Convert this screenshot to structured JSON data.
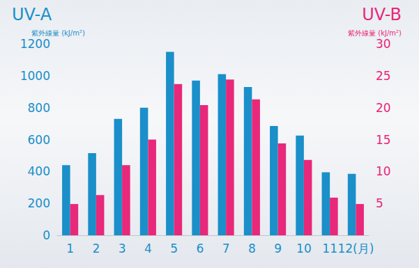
{
  "chart_data": {
    "type": "bar",
    "ylabel": "紫外線量 (kJ/m²)",
    "y2label": "紫外線量 (kJ/m²)",
    "categories": [
      "1",
      "2",
      "3",
      "4",
      "5",
      "6",
      "7",
      "8",
      "9",
      "10",
      "11",
      "12(月)"
    ],
    "series": [
      {
        "name": "UV-A",
        "color": "#1a8fc9",
        "values": [
          440,
          515,
          730,
          800,
          1150,
          970,
          1010,
          930,
          685,
          625,
          395,
          385
        ]
      },
      {
        "name": "UV-B",
        "color": "#e8287a",
        "axis": "y2",
        "values": [
          4.9,
          6.3,
          11,
          15,
          23.7,
          20.4,
          24.4,
          21.3,
          14.4,
          11.8,
          5.9,
          4.9
        ]
      }
    ],
    "ylim": [
      0,
      1200
    ],
    "yticks": [
      0,
      200,
      400,
      600,
      800,
      1000,
      1200
    ],
    "y2lim": [
      0,
      30
    ],
    "y2ticks": [
      5,
      10,
      15,
      20,
      25,
      30
    ],
    "grid": false
  }
}
